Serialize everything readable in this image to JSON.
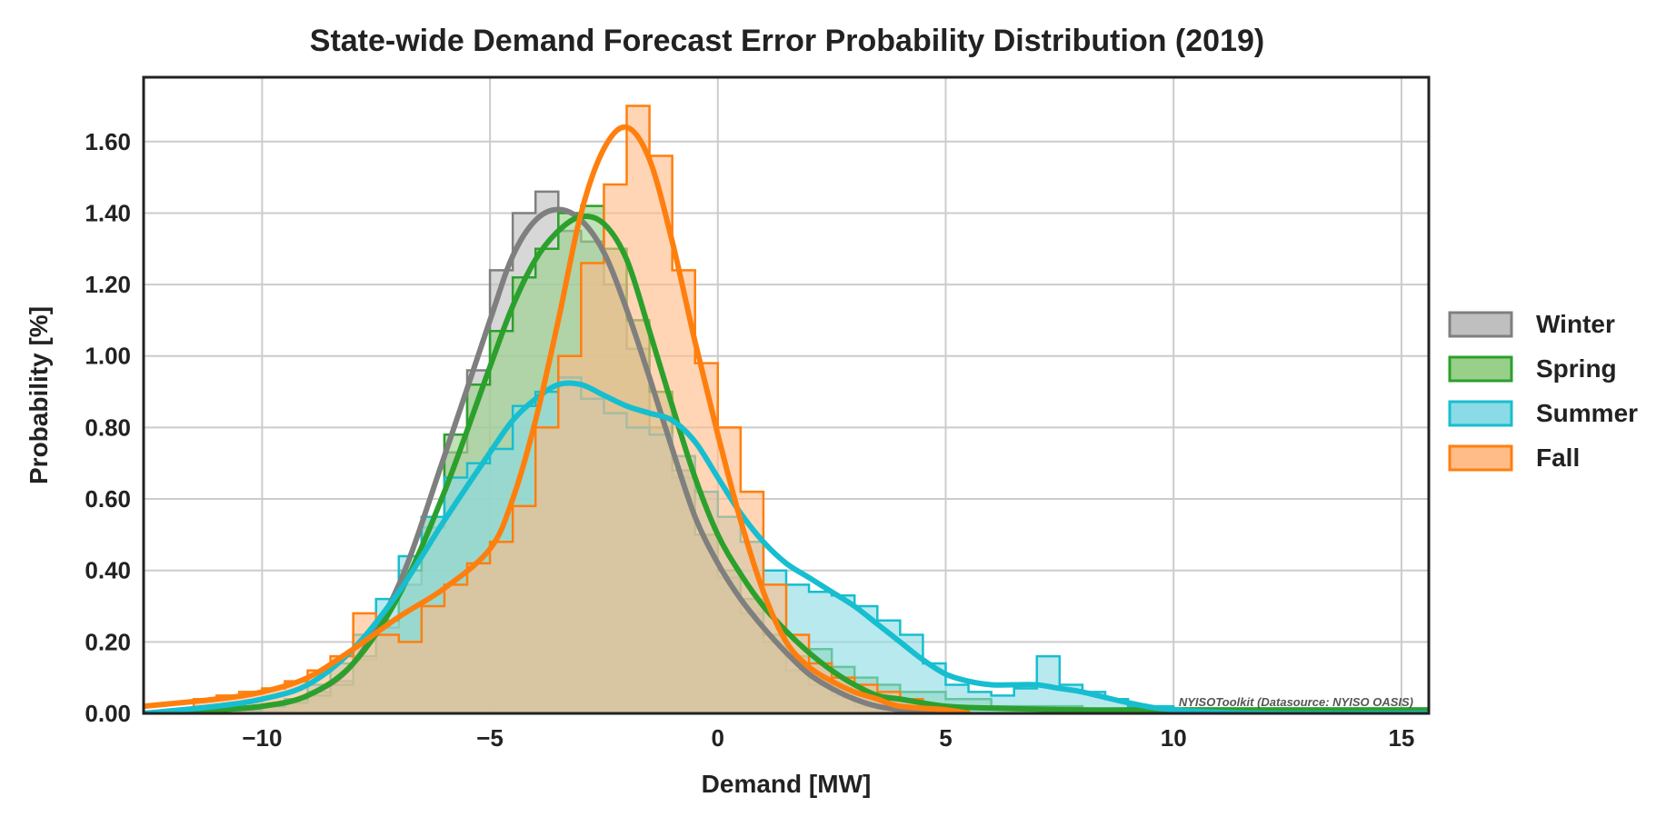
{
  "chart_data": {
    "type": "histogram-kde",
    "title": "State-wide Demand Forecast Error Probability Distribution (2019)",
    "xlabel": "Demand [MW]",
    "ylabel": "Probability [%]",
    "xlim": [
      -12.6,
      15.6
    ],
    "ylim": [
      0,
      1.78
    ],
    "xticks": [
      -10,
      -5,
      0,
      5,
      10,
      15
    ],
    "xtick_labels": [
      "−10",
      "−5",
      "0",
      "5",
      "10",
      "15"
    ],
    "yticks": [
      0,
      0.2,
      0.4,
      0.6,
      0.8,
      1.0,
      1.2,
      1.4,
      1.6
    ],
    "ytick_labels": [
      "0.00",
      "0.20",
      "0.40",
      "0.60",
      "0.80",
      "1.00",
      "1.20",
      "1.40",
      "1.60"
    ],
    "grid": true,
    "legend_position": "right",
    "watermark": "NYISOToolkit (Datasource: NYISO OASIS)",
    "series": [
      {
        "name": "Winter",
        "color": "#7f7f7f",
        "fill": "#bfbfbf",
        "hist_x": [
          -12.6,
          -11.0,
          -10.0,
          -9.5,
          -9.0,
          -8.5,
          -8.0,
          -7.5,
          -7.0,
          -6.5,
          -6.0,
          -5.5,
          -5.0,
          -4.5,
          -4.0,
          -3.5,
          -3.0,
          -2.5,
          -2.0,
          -1.5,
          -1.0,
          -0.5,
          0.0,
          0.5,
          1.0,
          1.5,
          2.0,
          2.5,
          3.0,
          3.5,
          4.0,
          5.0
        ],
        "hist_y": [
          0.0,
          0.01,
          0.02,
          0.04,
          0.06,
          0.09,
          0.15,
          0.24,
          0.36,
          0.52,
          0.73,
          0.96,
          1.24,
          1.4,
          1.46,
          1.35,
          1.32,
          1.2,
          1.02,
          0.8,
          0.66,
          0.5,
          0.38,
          0.28,
          0.2,
          0.12,
          0.08,
          0.05,
          0.02,
          0.01,
          0.0,
          0.0
        ],
        "kde_x": [
          -12.6,
          -11.0,
          -10.0,
          -9.0,
          -8.0,
          -7.0,
          -6.0,
          -5.0,
          -4.5,
          -4.0,
          -3.5,
          -3.0,
          -2.5,
          -2.0,
          -1.5,
          -1.0,
          -0.5,
          0.0,
          0.5,
          1.0,
          1.5,
          2.0,
          2.5,
          3.0,
          3.5,
          4.0,
          5.0
        ],
        "kde_y": [
          0.0,
          0.01,
          0.02,
          0.05,
          0.14,
          0.36,
          0.72,
          1.1,
          1.28,
          1.38,
          1.41,
          1.38,
          1.29,
          1.13,
          0.94,
          0.74,
          0.55,
          0.42,
          0.32,
          0.24,
          0.17,
          0.11,
          0.07,
          0.04,
          0.02,
          0.01,
          0.0
        ]
      },
      {
        "name": "Spring",
        "color": "#2ca02c",
        "fill": "#98d08a",
        "hist_x": [
          -12.6,
          -11.0,
          -10.0,
          -9.5,
          -9.0,
          -8.5,
          -8.0,
          -7.5,
          -7.0,
          -6.5,
          -6.0,
          -5.5,
          -5.0,
          -4.5,
          -4.0,
          -3.5,
          -3.0,
          -2.5,
          -2.0,
          -1.5,
          -1.0,
          -0.5,
          0.0,
          0.5,
          1.0,
          1.5,
          2.0,
          2.5,
          3.0,
          3.5,
          4.0,
          5.0,
          6.0,
          8.0,
          10.0,
          12.0,
          15.6
        ],
        "hist_y": [
          0.0,
          0.01,
          0.02,
          0.03,
          0.05,
          0.08,
          0.16,
          0.26,
          0.4,
          0.55,
          0.78,
          0.92,
          1.07,
          1.22,
          1.3,
          1.4,
          1.42,
          1.3,
          1.1,
          0.9,
          0.68,
          0.5,
          0.4,
          0.32,
          0.22,
          0.16,
          0.18,
          0.13,
          0.1,
          0.08,
          0.06,
          0.04,
          0.02,
          0.01,
          0.01,
          0.01,
          0.01
        ],
        "kde_x": [
          -12.6,
          -11.0,
          -10.0,
          -9.0,
          -8.0,
          -7.0,
          -6.0,
          -5.0,
          -4.5,
          -4.0,
          -3.5,
          -3.0,
          -2.5,
          -2.0,
          -1.5,
          -1.0,
          -0.5,
          0.0,
          0.5,
          1.0,
          1.5,
          2.0,
          2.5,
          3.0,
          3.5,
          4.0,
          5.0,
          6.0,
          8.0,
          10.0,
          12.0,
          15.6
        ],
        "kde_y": [
          0.0,
          0.01,
          0.02,
          0.05,
          0.14,
          0.33,
          0.62,
          0.97,
          1.14,
          1.27,
          1.35,
          1.39,
          1.37,
          1.27,
          1.07,
          0.86,
          0.66,
          0.5,
          0.39,
          0.3,
          0.23,
          0.17,
          0.12,
          0.08,
          0.05,
          0.04,
          0.02,
          0.015,
          0.01,
          0.01,
          0.01,
          0.01
        ]
      },
      {
        "name": "Summer",
        "color": "#17becf",
        "fill": "#8adbe5",
        "hist_x": [
          -12.6,
          -11.0,
          -10.0,
          -9.5,
          -9.0,
          -8.5,
          -8.0,
          -7.5,
          -7.0,
          -6.5,
          -6.0,
          -5.5,
          -5.0,
          -4.5,
          -4.0,
          -3.5,
          -3.0,
          -2.5,
          -2.0,
          -1.5,
          -1.0,
          -0.5,
          0.0,
          0.5,
          1.0,
          1.5,
          2.0,
          2.5,
          3.0,
          3.5,
          4.0,
          4.5,
          5.0,
          5.5,
          6.0,
          6.5,
          7.0,
          7.5,
          8.0,
          8.5,
          9.0,
          10.0,
          12.0,
          15.6
        ],
        "hist_y": [
          0.0,
          0.01,
          0.02,
          0.04,
          0.08,
          0.14,
          0.22,
          0.32,
          0.44,
          0.55,
          0.66,
          0.7,
          0.74,
          0.86,
          0.9,
          0.94,
          0.88,
          0.84,
          0.8,
          0.78,
          0.72,
          0.62,
          0.55,
          0.48,
          0.4,
          0.36,
          0.34,
          0.33,
          0.3,
          0.26,
          0.22,
          0.14,
          0.08,
          0.06,
          0.05,
          0.07,
          0.16,
          0.08,
          0.06,
          0.04,
          0.02,
          0.01,
          0.0,
          0.0
        ],
        "kde_x": [
          -12.6,
          -11.0,
          -10.0,
          -9.0,
          -8.0,
          -7.0,
          -6.0,
          -5.0,
          -4.5,
          -4.0,
          -3.5,
          -3.0,
          -2.5,
          -2.0,
          -1.5,
          -1.0,
          -0.5,
          0.0,
          0.5,
          1.0,
          1.5,
          2.0,
          2.5,
          3.0,
          3.5,
          4.0,
          4.5,
          5.0,
          5.5,
          6.0,
          6.5,
          7.0,
          7.5,
          8.0,
          9.0,
          10.0,
          12.0,
          15.6
        ],
        "kde_y": [
          0.0,
          0.02,
          0.04,
          0.08,
          0.18,
          0.34,
          0.54,
          0.73,
          0.82,
          0.88,
          0.92,
          0.92,
          0.89,
          0.86,
          0.84,
          0.82,
          0.76,
          0.66,
          0.56,
          0.48,
          0.42,
          0.38,
          0.34,
          0.3,
          0.25,
          0.2,
          0.15,
          0.11,
          0.09,
          0.08,
          0.08,
          0.08,
          0.07,
          0.06,
          0.03,
          0.01,
          0.0,
          0.0
        ]
      },
      {
        "name": "Fall",
        "color": "#ff7f0e",
        "fill": "#ffbb88",
        "hist_x": [
          -12.6,
          -11.5,
          -11.0,
          -10.5,
          -10.0,
          -9.5,
          -9.0,
          -8.5,
          -8.0,
          -7.5,
          -7.0,
          -6.5,
          -6.0,
          -5.5,
          -5.0,
          -4.5,
          -4.0,
          -3.5,
          -3.0,
          -2.5,
          -2.0,
          -1.5,
          -1.0,
          -0.5,
          0.0,
          0.5,
          1.0,
          1.5,
          2.0,
          2.5,
          3.0,
          3.5,
          4.0,
          4.5,
          5.0,
          5.5
        ],
        "hist_y": [
          0.0,
          0.04,
          0.05,
          0.06,
          0.07,
          0.09,
          0.12,
          0.16,
          0.28,
          0.22,
          0.2,
          0.3,
          0.36,
          0.42,
          0.48,
          0.58,
          0.8,
          1.0,
          1.26,
          1.48,
          1.7,
          1.56,
          1.24,
          0.98,
          0.8,
          0.62,
          0.36,
          0.22,
          0.14,
          0.1,
          0.08,
          0.06,
          0.04,
          0.02,
          0.01,
          0.0
        ],
        "kde_x": [
          -12.6,
          -11.0,
          -10.0,
          -9.0,
          -8.0,
          -7.0,
          -6.0,
          -5.0,
          -4.5,
          -4.0,
          -3.5,
          -3.0,
          -2.5,
          -2.0,
          -1.5,
          -1.0,
          -0.5,
          0.0,
          0.5,
          1.0,
          1.5,
          2.0,
          2.5,
          3.0,
          3.5,
          4.0,
          5.0,
          5.5
        ],
        "kde_y": [
          0.02,
          0.04,
          0.06,
          0.1,
          0.18,
          0.27,
          0.35,
          0.46,
          0.6,
          0.82,
          1.1,
          1.4,
          1.58,
          1.64,
          1.55,
          1.32,
          1.04,
          0.78,
          0.54,
          0.34,
          0.2,
          0.13,
          0.09,
          0.06,
          0.04,
          0.02,
          0.01,
          0.0
        ]
      }
    ]
  }
}
